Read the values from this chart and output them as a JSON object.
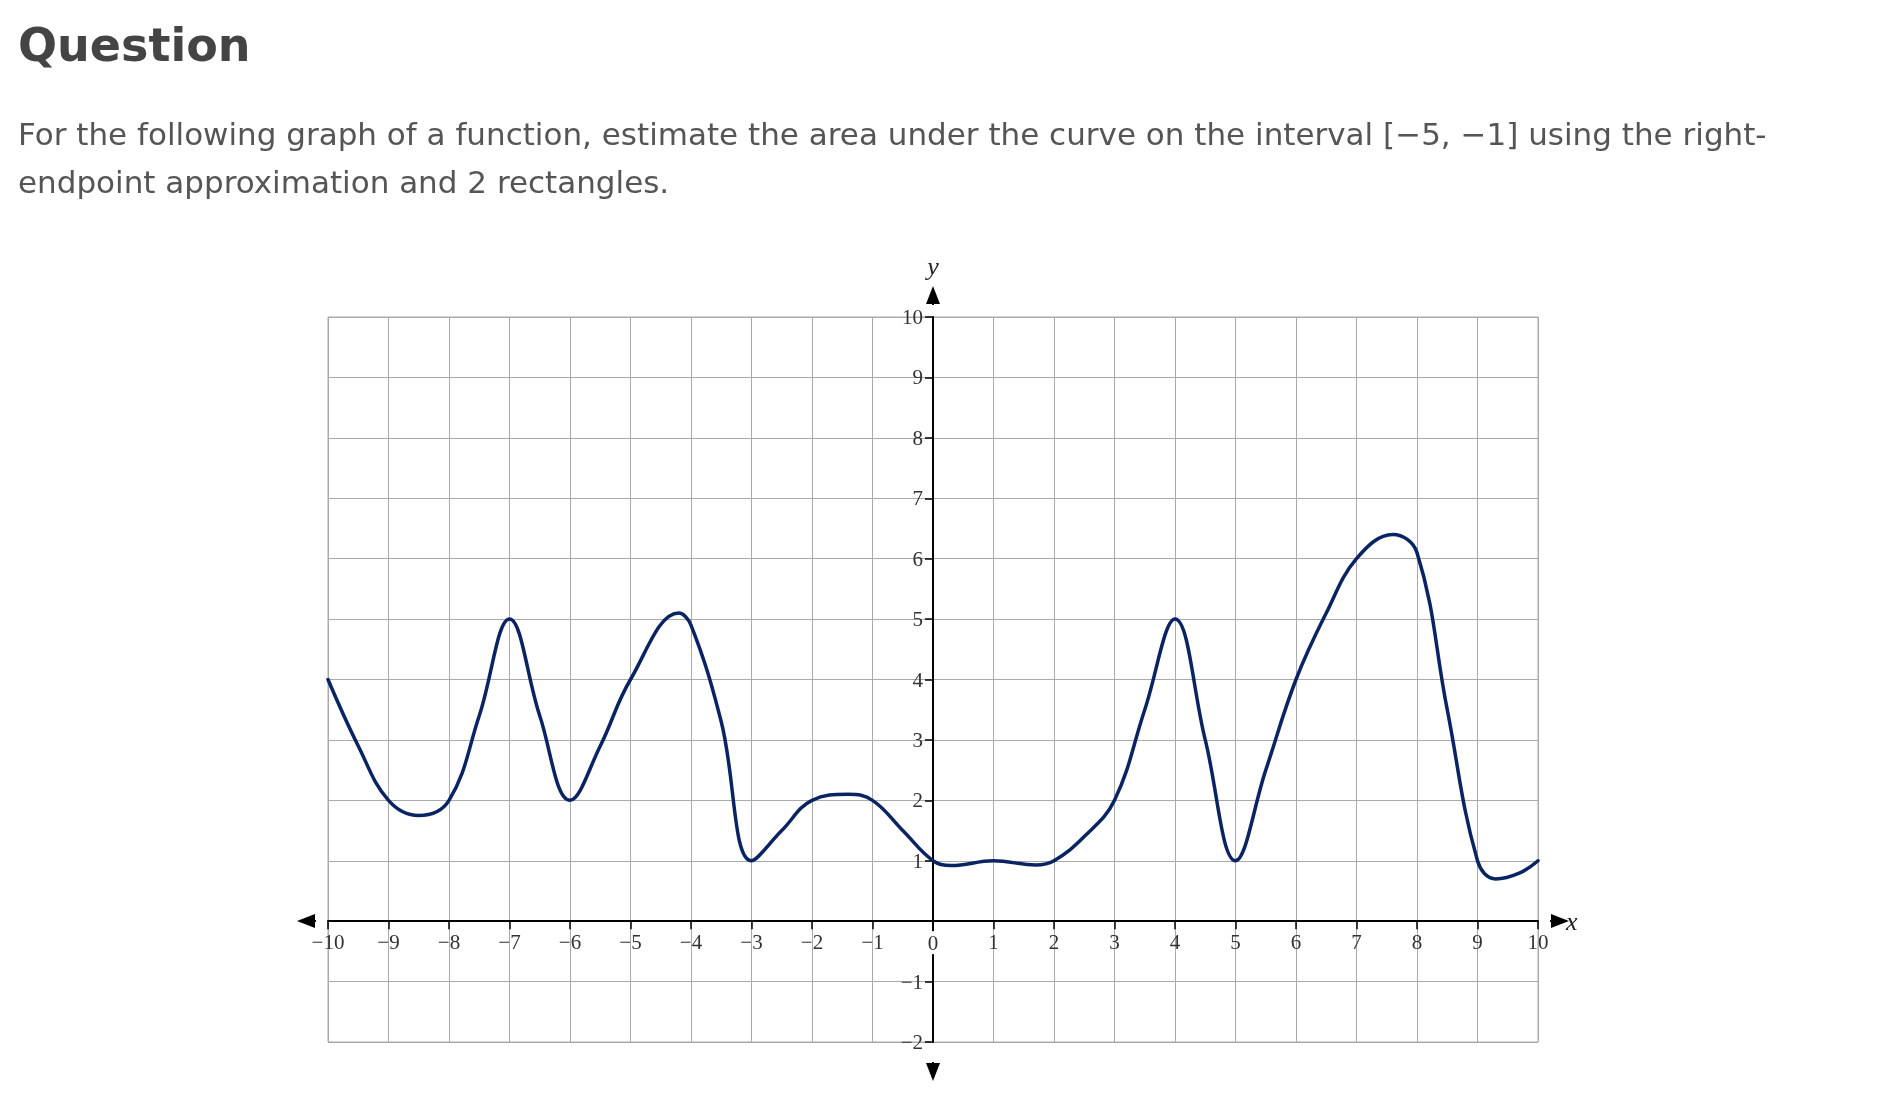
{
  "chart_data": {
    "type": "line",
    "title": "Question",
    "subtitle": "For the following graph of a function, estimate the area under the curve on the interval [−5, −1] using the right-endpoint approximation and 2 rectangles.",
    "xlabel": "x",
    "ylabel": "y",
    "series": [
      {
        "color": "#0a2463",
        "x": [
          -10,
          -9.5,
          -9,
          -8.5,
          -8,
          -7.5,
          -7,
          -6.5,
          -6,
          -5.5,
          -5,
          -4.2,
          -4,
          -3.5,
          -3,
          -2.5,
          -2,
          -1.4,
          -1,
          -0.5,
          0,
          0.3,
          1,
          1.7,
          2,
          2.5,
          3,
          3.5,
          4,
          4.5,
          5,
          5.5,
          6,
          6.5,
          7,
          7.6,
          8,
          8.5,
          9,
          9.3,
          9.7,
          10
        ],
        "values": [
          4,
          2.9,
          2,
          1.75,
          2,
          3.4,
          5,
          3.4,
          2,
          2.9,
          4,
          5.1,
          4.9,
          3.3,
          1,
          1.5,
          2,
          2.1,
          2,
          1.5,
          1,
          0.92,
          1,
          0.93,
          1,
          1.4,
          2,
          3.5,
          5,
          3,
          1,
          2.5,
          4,
          5.1,
          6,
          6.4,
          6.1,
          3.5,
          1,
          0.7,
          0.8,
          1
        ]
      }
    ],
    "xlim": [
      -10,
      10
    ],
    "xticks": [
      {
        "value": -10,
        "label": "−10"
      },
      {
        "value": -9,
        "label": "−9"
      },
      {
        "value": -8,
        "label": "−8"
      },
      {
        "value": -7,
        "label": "−7"
      },
      {
        "value": -6,
        "label": "−6"
      },
      {
        "value": -5,
        "label": "−5"
      },
      {
        "value": -4,
        "label": "−4"
      },
      {
        "value": -3,
        "label": "−3"
      },
      {
        "value": -2,
        "label": "−2"
      },
      {
        "value": -1,
        "label": "−1"
      },
      0,
      1,
      2,
      3,
      4,
      5,
      6,
      7,
      8,
      9,
      10
    ],
    "ylim": [
      -2,
      10
    ],
    "yticks": [
      {
        "value": -2,
        "label": "−2"
      },
      {
        "value": -1,
        "label": "−1"
      },
      {
        "value": 0,
        "label": null
      },
      1,
      2,
      3,
      4,
      5,
      6,
      7,
      8,
      9,
      10
    ],
    "grid": true,
    "marker": "none",
    "line_style": "solid"
  }
}
